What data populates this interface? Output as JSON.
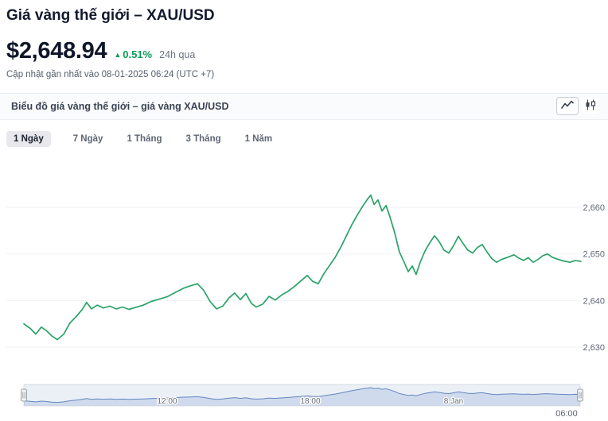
{
  "header": {
    "title": "Giá vàng thế giới – XAU/USD",
    "price": "$2,648.94",
    "change": {
      "arrow": "▲",
      "percent": "0.51%",
      "period": "24h qua"
    },
    "updated": "Cập nhật gần nhất vào 08-01-2025 06:24 (UTC +7)"
  },
  "panel": {
    "title": "Biểu đồ giá vàng thế giới – giá vàng XAU/USD",
    "icons": [
      "line-chart",
      "candlestick"
    ]
  },
  "tabs": [
    {
      "label": "1 Ngày",
      "active": true
    },
    {
      "label": "7 Ngày",
      "active": false
    },
    {
      "label": "1 Tháng",
      "active": false
    },
    {
      "label": "3 Tháng",
      "active": false
    },
    {
      "label": "1 Năm",
      "active": false
    }
  ],
  "colors": {
    "accent_green": "#0d9b57",
    "line_green": "#2aa268",
    "navigator_blue": "#6486c0",
    "text_dark": "#141b2d",
    "text_gray": "#5f6673"
  },
  "chart_data": {
    "type": "line",
    "title": "Biểu đồ giá vàng thế giới – giá vàng XAU/USD",
    "ylabel": "",
    "xlabel": "",
    "ylim": [
      2626,
      2666
    ],
    "x_range_hours": [
      0,
      23.33
    ],
    "grid": "horizontal-faint",
    "legend": "none",
    "yticks": [
      {
        "value": 2630,
        "label": "2,630"
      },
      {
        "value": 2640,
        "label": "2,640"
      },
      {
        "value": 2650,
        "label": "2,650"
      },
      {
        "value": 2660,
        "label": "2,660"
      }
    ],
    "x_labels": [
      {
        "hour": 6,
        "label": "12:00"
      },
      {
        "hour": 12,
        "label": "18:00"
      },
      {
        "hour": 18,
        "label": "8 Jan"
      }
    ],
    "x_end_label": "06:00",
    "navigator": {
      "full_range_selected": true,
      "labels": [
        "12:00",
        "18:00",
        "8 Jan"
      ]
    },
    "series": [
      {
        "name": "XAU/USD",
        "points": [
          [
            0,
            2635.0
          ],
          [
            0.27,
            2634.0
          ],
          [
            0.5,
            2632.8
          ],
          [
            0.73,
            2634.3
          ],
          [
            0.93,
            2633.6
          ],
          [
            1.17,
            2632.4
          ],
          [
            1.4,
            2631.6
          ],
          [
            1.67,
            2632.8
          ],
          [
            1.93,
            2635.2
          ],
          [
            2.2,
            2636.6
          ],
          [
            2.43,
            2638.0
          ],
          [
            2.63,
            2639.6
          ],
          [
            2.83,
            2638.2
          ],
          [
            3.07,
            2639.0
          ],
          [
            3.33,
            2638.4
          ],
          [
            3.6,
            2638.8
          ],
          [
            3.87,
            2638.2
          ],
          [
            4.13,
            2638.6
          ],
          [
            4.4,
            2638.1
          ],
          [
            4.67,
            2638.5
          ],
          [
            5.0,
            2639.0
          ],
          [
            5.33,
            2639.8
          ],
          [
            5.67,
            2640.3
          ],
          [
            6.0,
            2640.8
          ],
          [
            6.33,
            2641.7
          ],
          [
            6.67,
            2642.6
          ],
          [
            7.0,
            2643.2
          ],
          [
            7.27,
            2643.6
          ],
          [
            7.53,
            2642.2
          ],
          [
            7.8,
            2639.8
          ],
          [
            8.07,
            2638.2
          ],
          [
            8.33,
            2638.8
          ],
          [
            8.6,
            2640.6
          ],
          [
            8.83,
            2641.6
          ],
          [
            9.07,
            2640.2
          ],
          [
            9.3,
            2641.5
          ],
          [
            9.53,
            2639.4
          ],
          [
            9.73,
            2638.6
          ],
          [
            10.0,
            2639.2
          ],
          [
            10.27,
            2640.9
          ],
          [
            10.53,
            2640.1
          ],
          [
            10.8,
            2641.2
          ],
          [
            11.07,
            2642.0
          ],
          [
            11.33,
            2643.0
          ],
          [
            11.6,
            2644.2
          ],
          [
            11.87,
            2645.4
          ],
          [
            12.1,
            2644.1
          ],
          [
            12.33,
            2643.6
          ],
          [
            12.57,
            2645.8
          ],
          [
            12.8,
            2647.5
          ],
          [
            13.03,
            2649.2
          ],
          [
            13.27,
            2651.4
          ],
          [
            13.5,
            2653.8
          ],
          [
            13.73,
            2656.2
          ],
          [
            13.97,
            2658.4
          ],
          [
            14.2,
            2660.3
          ],
          [
            14.4,
            2661.8
          ],
          [
            14.53,
            2662.6
          ],
          [
            14.67,
            2660.6
          ],
          [
            14.83,
            2661.6
          ],
          [
            15.0,
            2659.2
          ],
          [
            15.17,
            2660.4
          ],
          [
            15.33,
            2658.0
          ],
          [
            15.53,
            2654.6
          ],
          [
            15.73,
            2650.4
          ],
          [
            15.93,
            2648.2
          ],
          [
            16.1,
            2646.2
          ],
          [
            16.27,
            2647.4
          ],
          [
            16.43,
            2645.6
          ],
          [
            16.6,
            2648.2
          ],
          [
            16.8,
            2650.6
          ],
          [
            17.0,
            2652.4
          ],
          [
            17.2,
            2653.9
          ],
          [
            17.4,
            2652.6
          ],
          [
            17.6,
            2650.8
          ],
          [
            17.8,
            2650.2
          ],
          [
            18.0,
            2651.8
          ],
          [
            18.2,
            2653.8
          ],
          [
            18.4,
            2652.2
          ],
          [
            18.6,
            2650.8
          ],
          [
            18.8,
            2650.2
          ],
          [
            19.0,
            2651.4
          ],
          [
            19.2,
            2652.0
          ],
          [
            19.4,
            2650.4
          ],
          [
            19.6,
            2649.0
          ],
          [
            19.8,
            2648.2
          ],
          [
            20.0,
            2648.8
          ],
          [
            20.27,
            2649.3
          ],
          [
            20.53,
            2649.8
          ],
          [
            20.73,
            2649.1
          ],
          [
            20.93,
            2648.6
          ],
          [
            21.13,
            2649.2
          ],
          [
            21.33,
            2648.2
          ],
          [
            21.53,
            2648.8
          ],
          [
            21.73,
            2649.6
          ],
          [
            21.93,
            2650.0
          ],
          [
            22.13,
            2649.3
          ],
          [
            22.33,
            2648.9
          ],
          [
            22.6,
            2648.5
          ],
          [
            22.87,
            2648.2
          ],
          [
            23.1,
            2648.6
          ],
          [
            23.33,
            2648.4
          ]
        ]
      }
    ]
  }
}
